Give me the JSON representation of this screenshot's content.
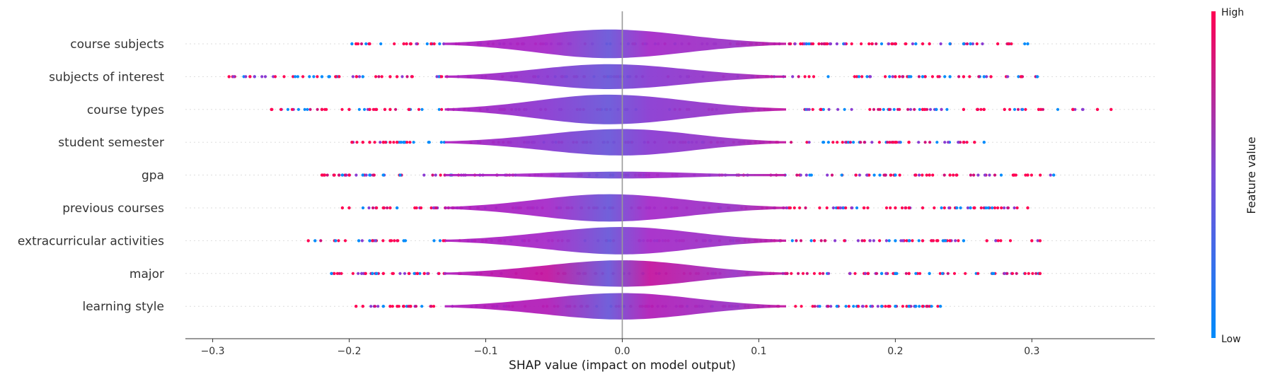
{
  "chart_data": {
    "type": "scatter",
    "subtype": "shap-violin-summary",
    "title": "",
    "xlabel": "SHAP value (impact on model output)",
    "ylabel": "",
    "xlim": [
      -0.32,
      0.39
    ],
    "xticks": [
      -0.3,
      -0.2,
      -0.1,
      0.0,
      0.1,
      0.2,
      0.3
    ],
    "xtick_labels": [
      "−0.3",
      "−0.2",
      "−0.1",
      "0.0",
      "0.1",
      "0.2",
      "0.3"
    ],
    "zero_line": 0.0,
    "grid": false,
    "colorbar": {
      "title": "Feature value",
      "high_label": "High",
      "low_label": "Low",
      "high_color": "#ff0052",
      "low_color": "#008bfb",
      "mid_color": "#7a4fd8"
    },
    "features": [
      {
        "name": "course subjects",
        "range": [
          -0.198,
          0.297
        ],
        "violin_width": 0.92,
        "peak": -0.01,
        "core_color": "#a62bc9",
        "outliers": [
          -0.198,
          -0.195,
          -0.185,
          -0.16,
          -0.158,
          -0.155,
          -0.14,
          0.2,
          0.215,
          0.22,
          0.225,
          0.24,
          0.25,
          0.255,
          0.275,
          0.283,
          0.297
        ]
      },
      {
        "name": "subjects of interest",
        "range": [
          -0.288,
          0.304
        ],
        "violin_width": 0.8,
        "peak": -0.01,
        "core_color": "#8a3bd2",
        "outliers": [
          -0.288,
          -0.22,
          -0.215,
          -0.21,
          -0.19,
          -0.17,
          -0.165,
          0.2,
          0.21,
          0.22,
          0.24,
          0.25,
          0.265,
          0.27,
          0.292,
          0.304
        ]
      },
      {
        "name": "course types",
        "range": [
          -0.257,
          0.358
        ],
        "violin_width": 0.95,
        "peak": -0.01,
        "core_color": "#8a3bd2",
        "outliers": [
          -0.257,
          -0.22,
          -0.2,
          -0.185,
          -0.18,
          -0.17,
          0.22,
          0.23,
          0.25,
          0.26,
          0.265,
          0.28,
          0.305,
          0.33,
          0.348,
          0.358
        ]
      },
      {
        "name": "student semester",
        "range": [
          -0.198,
          0.265
        ],
        "violin_width": 0.85,
        "peak": 0.0,
        "core_color": "#8a3bd2",
        "outliers": [
          -0.198,
          -0.19,
          -0.185,
          -0.175,
          -0.17,
          -0.165,
          -0.16,
          0.2,
          0.21,
          0.25,
          0.258,
          0.265
        ]
      },
      {
        "name": "gpa",
        "range": [
          -0.22,
          0.316
        ],
        "violin_width": 0.22,
        "peak": 0.0,
        "core_color": "#a62bc9",
        "outliers": [
          -0.22,
          -0.218,
          -0.205,
          -0.2,
          -0.19,
          -0.185,
          -0.175,
          0.2,
          0.215,
          0.225,
          0.24,
          0.245,
          0.287,
          0.297,
          0.316
        ]
      },
      {
        "name": "previous courses",
        "range": [
          -0.205,
          0.297
        ],
        "violin_width": 0.88,
        "peak": -0.01,
        "core_color": "#a62bc9",
        "outliers": [
          -0.205,
          -0.2,
          -0.18,
          -0.175,
          -0.17,
          -0.165,
          0.2,
          0.21,
          0.22,
          0.245,
          0.255,
          0.258,
          0.297
        ]
      },
      {
        "name": "extracurricular activities",
        "range": [
          -0.23,
          0.306
        ],
        "violin_width": 0.88,
        "peak": 0.0,
        "core_color": "#a62bc9",
        "outliers": [
          -0.23,
          -0.225,
          -0.21,
          -0.193,
          -0.185,
          -0.17,
          -0.16,
          0.2,
          0.21,
          0.22,
          0.235,
          0.24,
          0.25,
          0.267,
          0.3,
          0.306
        ]
      },
      {
        "name": "major",
        "range": [
          -0.213,
          0.306
        ],
        "violin_width": 0.85,
        "peak": 0.0,
        "core_color": "#c4159f",
        "outliers": [
          -0.213,
          -0.188,
          -0.183,
          -0.18,
          -0.175,
          -0.15,
          -0.145,
          0.18,
          0.19,
          0.2,
          0.21,
          0.225,
          0.306
        ]
      },
      {
        "name": "learning style",
        "range": [
          -0.195,
          0.233
        ],
        "violin_width": 0.85,
        "peak": 0.0,
        "core_color": "#b21fb8",
        "outliers": [
          -0.195,
          -0.19,
          -0.175,
          -0.17,
          -0.16,
          -0.155,
          0.19,
          0.195,
          0.2,
          0.21,
          0.215,
          0.22,
          0.233
        ]
      }
    ]
  }
}
